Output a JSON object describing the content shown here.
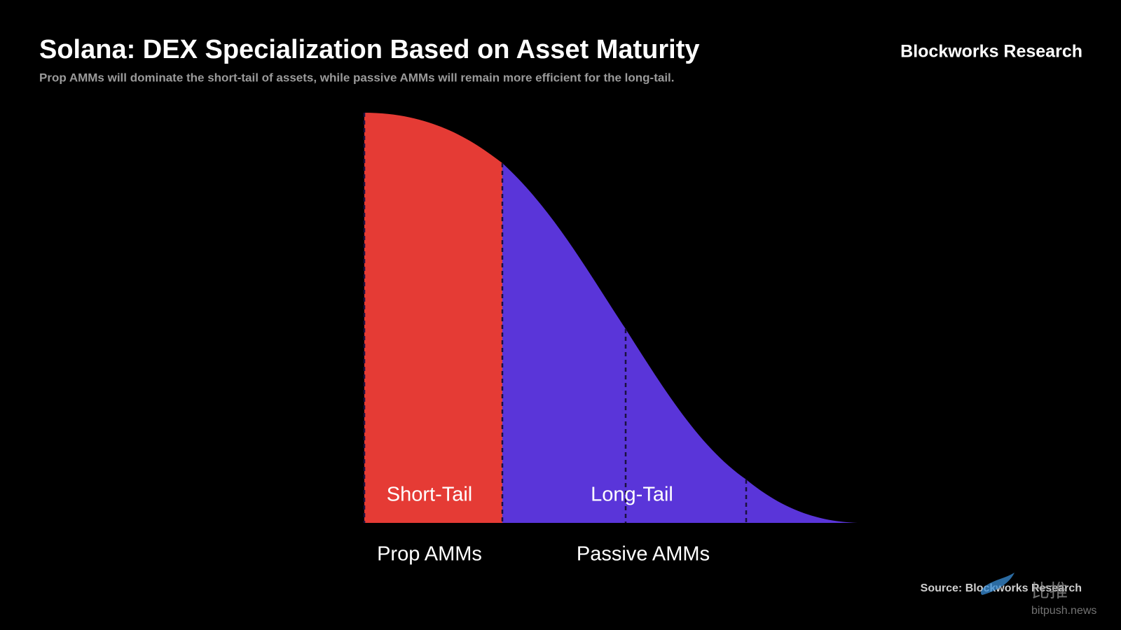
{
  "header": {
    "title": "Solana: DEX Specialization Based on Asset Maturity",
    "subtitle": "Prop AMMs will dominate the short-tail of assets, while passive AMMs will remain more efficient for the long-tail.",
    "brand": "Blockworks Research"
  },
  "regions": [
    {
      "label": "Short-Tail",
      "category": "Prop AMMs"
    },
    {
      "label": "Long-Tail",
      "category": "Passive AMMs"
    }
  ],
  "source": "Source: Blockworks Research",
  "watermark": {
    "logo_text": "比推",
    "site": "bitpush.news"
  }
}
